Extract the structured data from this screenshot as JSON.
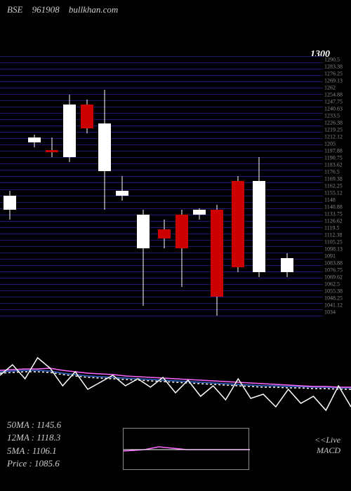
{
  "header": {
    "exchange": "BSE",
    "ticker": "961908",
    "site": "bullkhan.com"
  },
  "top_price_label": "1300",
  "chart": {
    "type": "candlestick",
    "ylim": [
      1030,
      1300
    ],
    "grid_color": "#1a1a6e",
    "grid_lines": 42,
    "background_color": "#000000",
    "y_labels": [
      "1290.5",
      "1283.38",
      "1276.25",
      "1269.13",
      "1262",
      "1254.88",
      "1247.75",
      "1240.63",
      "1233.5",
      "1226.38",
      "1219.25",
      "1212.12",
      "1205",
      "1197.88",
      "1190.75",
      "1183.62",
      "1176.5",
      "1169.38",
      "1162.25",
      "1155.12",
      "1148",
      "1140.88",
      "1133.75",
      "1126.62",
      "1119.5",
      "1112.38",
      "1105.25",
      "1098.13",
      "1091",
      "1083.88",
      "1076.75",
      "1069.62",
      "1062.5",
      "1055.38",
      "1048.25",
      "1041.12",
      "1034"
    ],
    "candle_width": 18,
    "candles": [
      {
        "x": 5,
        "open": 1155,
        "close": 1140,
        "high": 1160,
        "low": 1130,
        "color": "#ffffff"
      },
      {
        "x": 40,
        "open": 1210,
        "close": 1215,
        "high": 1218,
        "low": 1205,
        "color": "#ffffff"
      },
      {
        "x": 65,
        "open": 1202,
        "close": 1200,
        "high": 1215,
        "low": 1195,
        "color": "#cc0000"
      },
      {
        "x": 90,
        "open": 1195,
        "close": 1250,
        "high": 1260,
        "low": 1190,
        "color": "#ffffff"
      },
      {
        "x": 115,
        "open": 1250,
        "close": 1225,
        "high": 1255,
        "low": 1220,
        "color": "#cc0000"
      },
      {
        "x": 140,
        "open": 1230,
        "close": 1180,
        "high": 1265,
        "low": 1140,
        "color": "#ffffff"
      },
      {
        "x": 165,
        "open": 1155,
        "close": 1160,
        "high": 1175,
        "low": 1150,
        "color": "#ffffff"
      },
      {
        "x": 195,
        "open": 1100,
        "close": 1135,
        "high": 1140,
        "low": 1040,
        "color": "#ffffff"
      },
      {
        "x": 225,
        "open": 1120,
        "close": 1110,
        "high": 1130,
        "low": 1100,
        "color": "#cc0000"
      },
      {
        "x": 250,
        "open": 1135,
        "close": 1100,
        "high": 1140,
        "low": 1060,
        "color": "#cc0000"
      },
      {
        "x": 275,
        "open": 1135,
        "close": 1140,
        "high": 1142,
        "low": 1130,
        "color": "#ffffff"
      },
      {
        "x": 300,
        "open": 1140,
        "close": 1050,
        "high": 1145,
        "low": 1030,
        "color": "#cc0000"
      },
      {
        "x": 330,
        "open": 1170,
        "close": 1080,
        "high": 1175,
        "low": 1075,
        "color": "#cc0000"
      },
      {
        "x": 360,
        "open": 1075,
        "close": 1170,
        "high": 1195,
        "low": 1070,
        "color": "#ffffff"
      },
      {
        "x": 400,
        "open": 1090,
        "close": 1075,
        "high": 1095,
        "low": 1070,
        "color": "#ffffff"
      }
    ]
  },
  "macd": {
    "type": "line",
    "colors": {
      "line1": "#ffffff",
      "line2": "#ff66ff",
      "line3": "#3366cc",
      "line4_dashed": "#ffffff"
    },
    "line_width": 1.5,
    "line1_points": [
      55,
      40,
      60,
      30,
      45,
      70,
      50,
      75,
      65,
      55,
      70,
      60,
      72,
      58,
      80,
      62,
      85,
      70,
      90,
      60,
      88,
      82,
      100,
      75,
      95,
      85,
      105,
      70,
      100
    ],
    "line2_points": [
      48,
      47,
      46,
      46,
      45,
      48,
      50,
      52,
      53,
      54,
      56,
      57,
      58,
      59,
      60,
      61,
      62,
      63,
      64,
      65,
      66,
      67,
      68,
      69,
      70,
      71,
      71,
      72,
      72
    ],
    "line3_points": [
      50,
      49,
      48,
      48,
      49,
      52,
      54,
      56,
      57,
      58,
      59,
      60,
      61,
      62,
      63,
      64,
      65,
      66,
      67,
      68,
      69,
      70,
      70,
      71,
      71,
      72,
      72,
      73,
      73
    ],
    "line4_points": [
      52,
      51,
      50,
      50,
      51,
      54,
      56,
      58,
      59,
      60,
      61,
      62,
      63,
      64,
      65,
      66,
      67,
      68,
      69,
      70,
      71,
      72,
      72,
      73,
      73,
      74,
      74,
      75,
      75
    ]
  },
  "info": {
    "ma50_label": "50MA :",
    "ma50_value": "1145.6",
    "ma12_label": "12MA :",
    "ma12_value": "1118.3",
    "ma5_label": "5MA :",
    "ma5_value": "1106.1",
    "price_label": "Price   :",
    "price_value": "1085.6"
  },
  "inset": {
    "line_color": "#ff66ff",
    "mid_y": 30
  },
  "live_label": {
    "line1": "<<Live",
    "line2": "MACD"
  }
}
